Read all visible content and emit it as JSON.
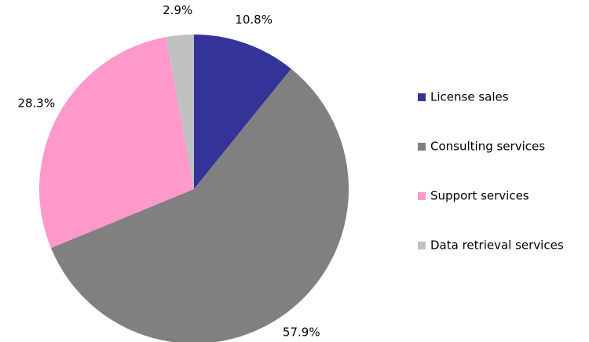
{
  "chart_data": {
    "type": "pie",
    "categories": [
      "License sales",
      "Consulting services",
      "Support services",
      "Data retrieval services"
    ],
    "values": [
      10.8,
      57.9,
      28.3,
      2.9
    ],
    "value_labels": [
      "10.8%",
      "57.9%",
      "28.3%",
      "2.9%"
    ],
    "colors": [
      "#333399",
      "#808080",
      "#ff99cc",
      "#c0c0c0"
    ],
    "legend": "right"
  }
}
